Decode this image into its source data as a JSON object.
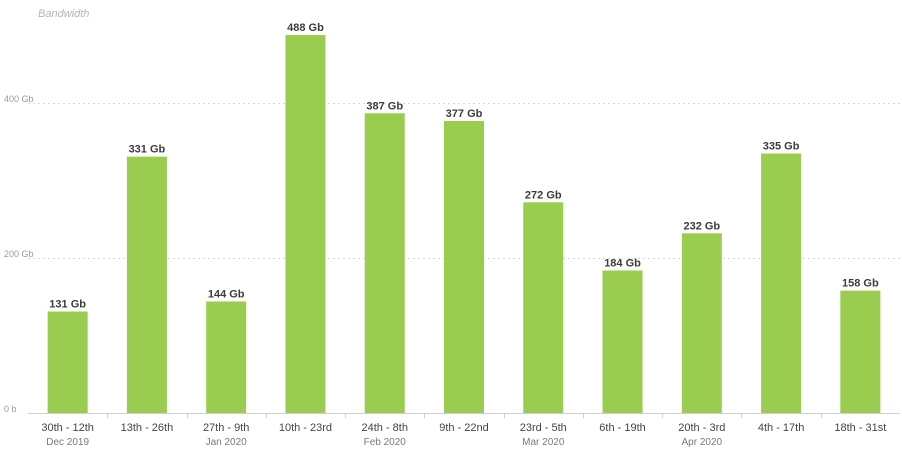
{
  "chart_data": {
    "type": "bar",
    "title": "Bandwidth",
    "xlabel": "",
    "ylabel": "",
    "ylim": [
      0,
      520
    ],
    "grid": true,
    "y_ticks": [
      {
        "value": 0,
        "label": "0 b"
      },
      {
        "value": 200,
        "label": "200 Gb"
      },
      {
        "value": 400,
        "label": "400 Gb"
      }
    ],
    "categories": [
      "30th - 12th",
      "13th - 26th",
      "27th - 9th",
      "10th - 23rd",
      "24th - 8th",
      "9th - 22nd",
      "23rd - 5th",
      "6th - 19th",
      "20th - 3rd",
      "4th - 17th",
      "18th - 31st"
    ],
    "sublabels": [
      "Dec 2019",
      "",
      "Jan 2020",
      "",
      "Feb 2020",
      "",
      "Mar 2020",
      "",
      "Apr 2020",
      "",
      ""
    ],
    "values": [
      131,
      331,
      144,
      488,
      387,
      377,
      272,
      184,
      232,
      335,
      158
    ],
    "data_labels": [
      "131 Gb",
      "331 Gb",
      "144 Gb",
      "488 Gb",
      "387 Gb",
      "377 Gb",
      "272 Gb",
      "184 Gb",
      "232 Gb",
      "335 Gb",
      "158 Gb"
    ],
    "bar_color": "#99cc4f"
  }
}
